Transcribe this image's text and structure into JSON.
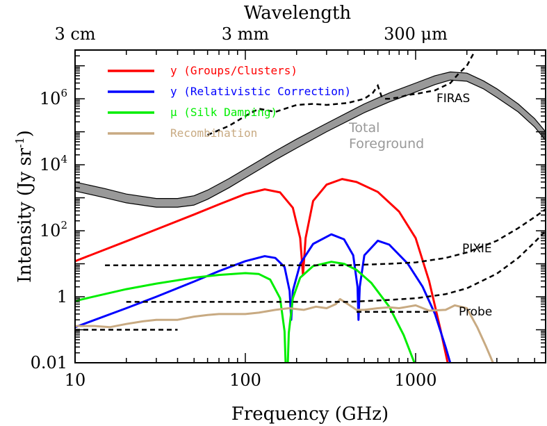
{
  "chart_data": {
    "type": "line",
    "xlabel": "Frequency (GHz)",
    "ylabel": "Intensity (Jy sr",
    "ylabel_sup": "-1",
    "ylabel_close": ")",
    "top_axis": {
      "label": "Wavelength",
      "ticks": [
        {
          "label": "3 cm",
          "x": 10
        },
        {
          "label": "3 mm",
          "x": 100
        },
        {
          "label": "300 μm",
          "x": 1000
        }
      ]
    },
    "x_scale": "log",
    "y_scale": "log",
    "xlim": [
      10,
      5800
    ],
    "ylim": [
      0.01,
      30000000.0
    ],
    "x_ticks": [
      {
        "v": 10,
        "label": "10"
      },
      {
        "v": 100,
        "label": "100"
      },
      {
        "v": 1000,
        "label": "1000"
      }
    ],
    "y_ticks": [
      {
        "v": 0.01,
        "label": "0.01"
      },
      {
        "v": 1,
        "label": "1"
      },
      {
        "v": 100,
        "label": "10",
        "sup": "2"
      },
      {
        "v": 10000,
        "label": "10",
        "sup": "4"
      },
      {
        "v": 1000000,
        "label": "10",
        "sup": "6"
      }
    ],
    "legend_position": "top-left",
    "legend": [
      {
        "label": "y (Groups/Clusters)",
        "color": "#ff0000"
      },
      {
        "label": "y (Relativistic Correction)",
        "color": "#0000ff"
      },
      {
        "label": "μ (Silk Damping)",
        "color": "#00ee00"
      },
      {
        "label": "Recombination",
        "color": "#c8aa82"
      }
    ],
    "band": {
      "label_line1": "Total",
      "label_line2": "Foreground",
      "color": "#999999",
      "x": [
        10,
        15,
        20,
        30,
        40,
        50,
        60,
        80,
        100,
        150,
        200,
        300,
        500,
        700,
        1000,
        1300,
        1600,
        2000,
        2500,
        3000,
        4000,
        5000,
        5800
      ],
      "upper": [
        3000,
        1900,
        1300,
        950,
        950,
        1150,
        1700,
        3800,
        7500,
        26000,
        60000,
        180000,
        700000,
        1500000,
        3000000,
        5000000,
        6500000,
        6000000,
        3500000,
        2000000,
        700000,
        250000,
        100000
      ],
      "lower": [
        1600,
        1000,
        700,
        520,
        520,
        600,
        900,
        2000,
        4000,
        14000,
        32000,
        100000,
        380000,
        800000,
        1600000,
        2700000,
        3700000,
        3400000,
        2000000,
        1100000,
        400000,
        140000,
        55000
      ]
    },
    "series": [
      {
        "name": "y (Groups/Clusters)",
        "color": "#ff0000",
        "x": [
          10,
          20,
          30,
          50,
          70,
          100,
          130,
          160,
          190,
          210,
          218,
          226,
          250,
          300,
          370,
          450,
          600,
          800,
          1000,
          1200,
          1400,
          1650
        ],
        "y": [
          12,
          48,
          110,
          310,
          630,
          1300,
          1800,
          1450,
          500,
          60,
          4.5,
          60,
          800,
          2500,
          3700,
          3000,
          1500,
          380,
          60,
          3,
          0.1,
          0.002
        ]
      },
      {
        "name": "y (Relativistic Correction)",
        "color": "#0000ff",
        "x": [
          10,
          20,
          30,
          50,
          70,
          100,
          130,
          150,
          170,
          182,
          186,
          190,
          210,
          250,
          320,
          380,
          430,
          456,
          462,
          470,
          500,
          600,
          700,
          900,
          1100,
          1300,
          1500,
          1750
        ],
        "y": [
          0.12,
          0.45,
          1,
          2.9,
          6,
          12,
          17,
          15,
          8,
          1.5,
          0.2,
          1.5,
          10,
          40,
          78,
          55,
          18,
          2,
          0.2,
          2,
          18,
          50,
          38,
          10,
          2,
          0.3,
          0.03,
          0.002
        ]
      },
      {
        "name": "μ (Silk Damping)",
        "color": "#00ee00",
        "x": [
          10,
          20,
          30,
          50,
          70,
          100,
          120,
          140,
          160,
          170,
          175,
          180,
          190,
          210,
          250,
          320,
          380,
          450,
          550,
          700,
          850,
          1000,
          1100
        ],
        "y": [
          0.75,
          1.7,
          2.5,
          3.8,
          4.6,
          5.2,
          4.9,
          3.3,
          0.9,
          0.09,
          0.001,
          0.08,
          0.9,
          3.8,
          8.5,
          11.5,
          10,
          6.5,
          2.6,
          0.5,
          0.07,
          0.008,
          0.002
        ]
      },
      {
        "name": "Recombination",
        "color": "#c8aa82",
        "x": [
          10,
          13,
          16,
          20,
          25,
          30,
          40,
          50,
          60,
          70,
          85,
          100,
          120,
          150,
          180,
          220,
          260,
          300,
          340,
          360,
          400,
          450,
          500,
          600,
          700,
          800,
          900,
          1000,
          1200,
          1500,
          1700,
          2000,
          2300,
          2600,
          2900
        ],
        "y": [
          0.13,
          0.13,
          0.12,
          0.15,
          0.18,
          0.2,
          0.2,
          0.25,
          0.28,
          0.3,
          0.3,
          0.3,
          0.33,
          0.4,
          0.45,
          0.4,
          0.5,
          0.45,
          0.6,
          0.85,
          0.6,
          0.4,
          0.4,
          0.45,
          0.48,
          0.45,
          0.5,
          0.55,
          0.38,
          0.4,
          0.55,
          0.45,
          0.12,
          0.03,
          0.008
        ]
      }
    ],
    "sensitivity_curves": [
      {
        "label": "FIRAS",
        "color": "#000000",
        "x": [
          60,
          80,
          100,
          120,
          150,
          200,
          250,
          300,
          400,
          500,
          560,
          600,
          630,
          660,
          700,
          800,
          900,
          1000,
          1300,
          1600,
          1800,
          2000,
          2200
        ],
        "y": [
          80000,
          150000,
          300000,
          500000,
          400000,
          650000,
          700000,
          650000,
          750000,
          1000000,
          1500000,
          2500000,
          1200000,
          1000000,
          1000000,
          1100000,
          1300000,
          1400000,
          1800000,
          3000000,
          6000000,
          10000000,
          25000000
        ]
      },
      {
        "label": "PIXIE",
        "color": "#000000",
        "x": [
          15,
          50,
          100,
          200,
          400,
          700,
          1000,
          1500,
          2000,
          3000,
          4000,
          5000,
          5800
        ],
        "y": [
          9,
          9,
          9,
          9,
          9,
          10,
          11,
          15,
          22,
          50,
          120,
          260,
          450
        ]
      },
      {
        "label": "Probe",
        "color": "#000000",
        "x": [
          20,
          50,
          100,
          200,
          400,
          700,
          1000,
          1500,
          2000,
          3000,
          4000,
          5000,
          5800
        ],
        "y": [
          0.7,
          0.7,
          0.7,
          0.7,
          0.7,
          0.8,
          0.9,
          1.2,
          1.8,
          5,
          15,
          45,
          100
        ]
      },
      {
        "label": "",
        "color": "#000000",
        "x": [
          10,
          40
        ],
        "y": [
          0.1,
          0.1
        ]
      },
      {
        "label": "",
        "color": "#000000",
        "x": [
          450,
          1200
        ],
        "y": [
          0.35,
          0.35
        ]
      }
    ]
  }
}
